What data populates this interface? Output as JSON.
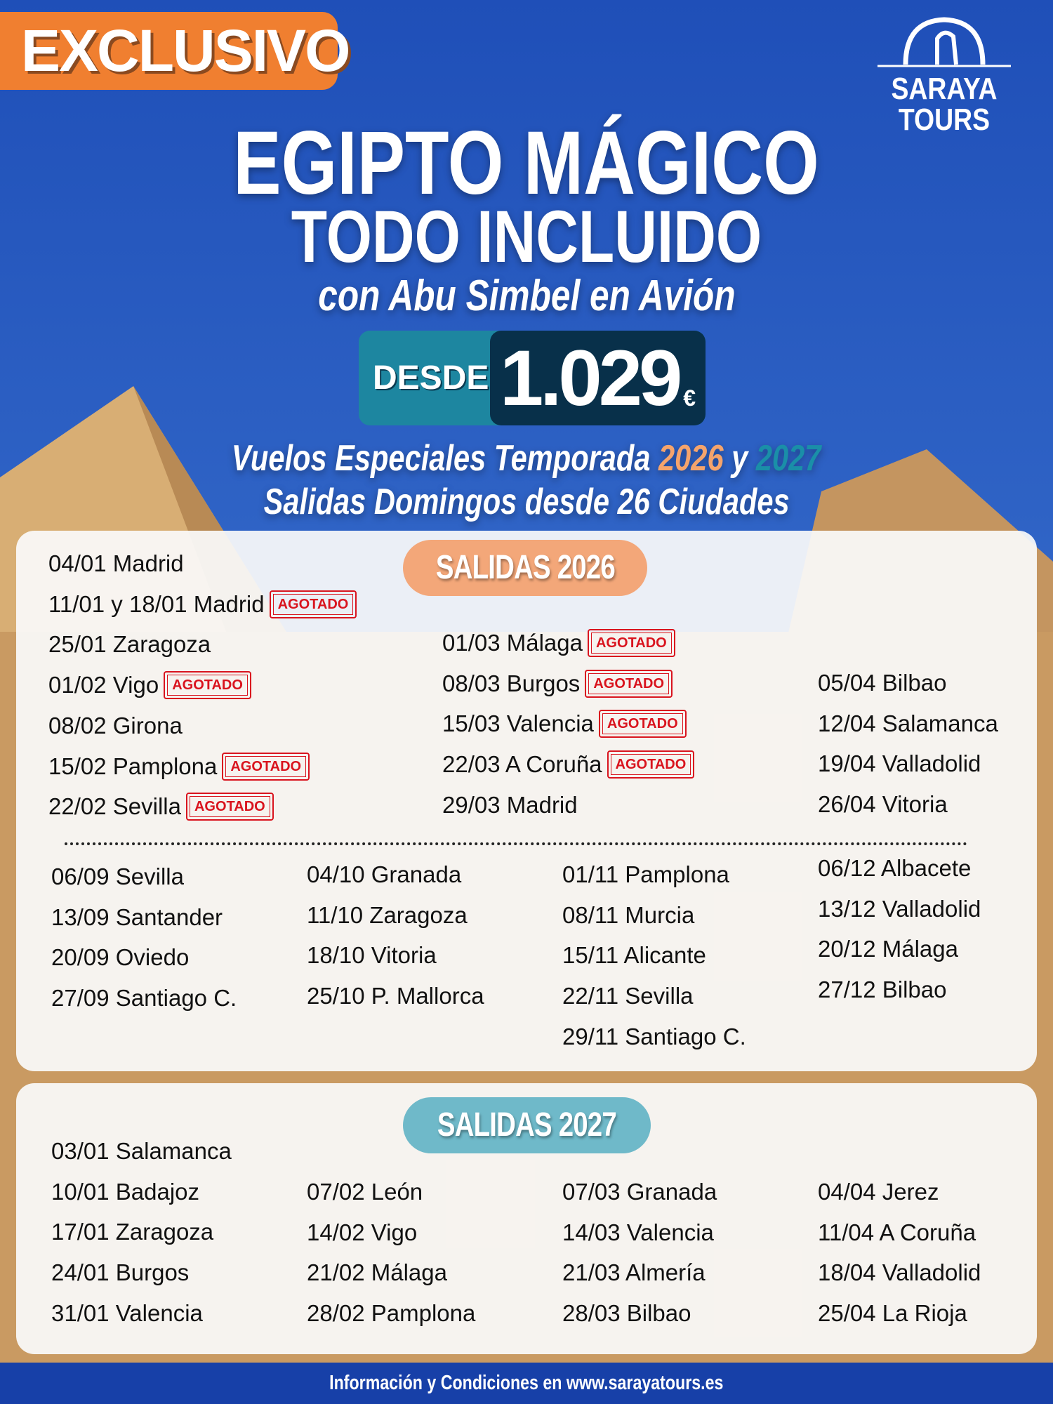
{
  "badge": "EXCLUSIVO",
  "logo": {
    "line1": "SARAYA",
    "line2": "TOURS"
  },
  "title": {
    "line1": "EGIPTO MÁGICO",
    "line2": "TODO INCLUIDO",
    "subtitle": "con Abu Simbel en Avión"
  },
  "price": {
    "label": "DESDE",
    "amount": "1.029",
    "currency": "€"
  },
  "tagline": {
    "prefix": "Vuelos Especiales Temporada ",
    "year1": "2026",
    "mid": " y ",
    "year2": "2027",
    "line2": "Salidas Domingos desde 26 Ciudades"
  },
  "colors": {
    "orange": "#f07f30",
    "year2026": "#f5a46c",
    "year2027": "#1a8fa8",
    "sold_out": "#d9141e",
    "footer": "#1740a8"
  },
  "sold_out_label": "AGOTADO",
  "salidas2026": {
    "heading": "SALIDAS 2026",
    "top": [
      [
        {
          "t": "04/01 Madrid"
        },
        {
          "t": "11/01 y 18/01 Madrid",
          "s": true
        },
        {
          "t": "25/01 Zaragoza"
        },
        {
          "t": "01/02 Vigo",
          "s": true
        },
        {
          "t": "08/02 Girona"
        },
        {
          "t": "15/02 Pamplona",
          "s": true
        },
        {
          "t": "22/02 Sevilla",
          "s": true
        }
      ],
      [
        {
          "t": "01/03 Málaga",
          "s": true
        },
        {
          "t": "08/03 Burgos",
          "s": true
        },
        {
          "t": "15/03 Valencia",
          "s": true
        },
        {
          "t": "22/03 A Coruña",
          "s": true
        },
        {
          "t": "29/03 Madrid"
        }
      ],
      [
        {
          "t": "05/04 Bilbao"
        },
        {
          "t": "12/04 Salamanca"
        },
        {
          "t": "19/04 Valladolid"
        },
        {
          "t": "26/04 Vitoria"
        }
      ]
    ],
    "bottom": [
      [
        {
          "t": "06/09 Sevilla"
        },
        {
          "t": "13/09 Santander"
        },
        {
          "t": "20/09 Oviedo"
        },
        {
          "t": "27/09 Santiago C."
        }
      ],
      [
        {
          "t": "04/10 Granada"
        },
        {
          "t": "11/10 Zaragoza"
        },
        {
          "t": "18/10 Vitoria"
        },
        {
          "t": "25/10 P. Mallorca"
        }
      ],
      [
        {
          "t": "01/11 Pamplona"
        },
        {
          "t": "08/11 Murcia"
        },
        {
          "t": "15/11 Alicante"
        },
        {
          "t": "22/11 Sevilla"
        },
        {
          "t": "29/11 Santiago C."
        }
      ],
      [
        {
          "t": "06/12 Albacete"
        },
        {
          "t": "13/12 Valladolid"
        },
        {
          "t": "20/12 Málaga"
        },
        {
          "t": "27/12 Bilbao"
        }
      ]
    ]
  },
  "salidas2027": {
    "heading": "SALIDAS 2027",
    "cols": [
      [
        {
          "t": "03/01 Salamanca"
        },
        {
          "t": "10/01 Badajoz"
        },
        {
          "t": "17/01 Zaragoza"
        },
        {
          "t": "24/01 Burgos"
        },
        {
          "t": "31/01 Valencia"
        }
      ],
      [
        {
          "t": "07/02 León"
        },
        {
          "t": "14/02 Vigo"
        },
        {
          "t": "21/02 Málaga"
        },
        {
          "t": "28/02 Pamplona"
        }
      ],
      [
        {
          "t": "07/03 Granada"
        },
        {
          "t": "14/03 Valencia"
        },
        {
          "t": "21/03 Almería"
        },
        {
          "t": "28/03 Bilbao"
        }
      ],
      [
        {
          "t": "04/04 Jerez"
        },
        {
          "t": "11/04 A Coruña"
        },
        {
          "t": "18/04 Valladolid"
        },
        {
          "t": "25/04 La Rioja"
        }
      ]
    ]
  },
  "footer": "Información y Condiciones en www.sarayatours.es"
}
